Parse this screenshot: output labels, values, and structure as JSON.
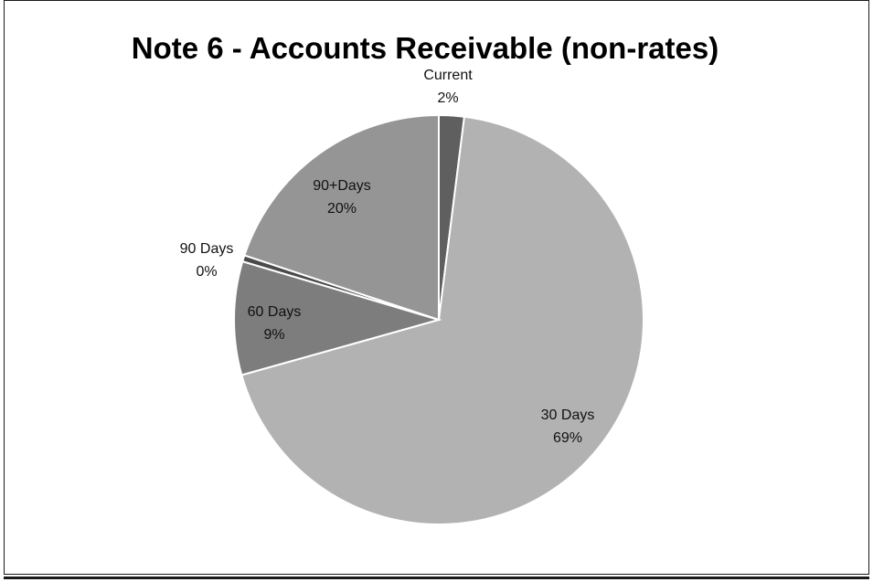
{
  "chart_data": {
    "type": "pie",
    "title": "Note 6 - Accounts Receivable (non-rates)",
    "slices": [
      {
        "label": "Current",
        "value": 2,
        "value_label": "2%",
        "color": "#5f5f5f"
      },
      {
        "label": "30 Days",
        "value": 69,
        "value_label": "69%",
        "color": "#b2b2b2"
      },
      {
        "label": "60 Days",
        "value": 9,
        "value_label": "9%",
        "color": "#7d7d7d"
      },
      {
        "label": "90 Days",
        "value": 0.5,
        "value_label": "0%",
        "color": "#4a4a4a"
      },
      {
        "label": "90+Days",
        "value": 20,
        "value_label": "20%",
        "color": "#959595"
      }
    ],
    "start_angle_deg": 0,
    "direction": "clockwise",
    "legend": "none"
  }
}
